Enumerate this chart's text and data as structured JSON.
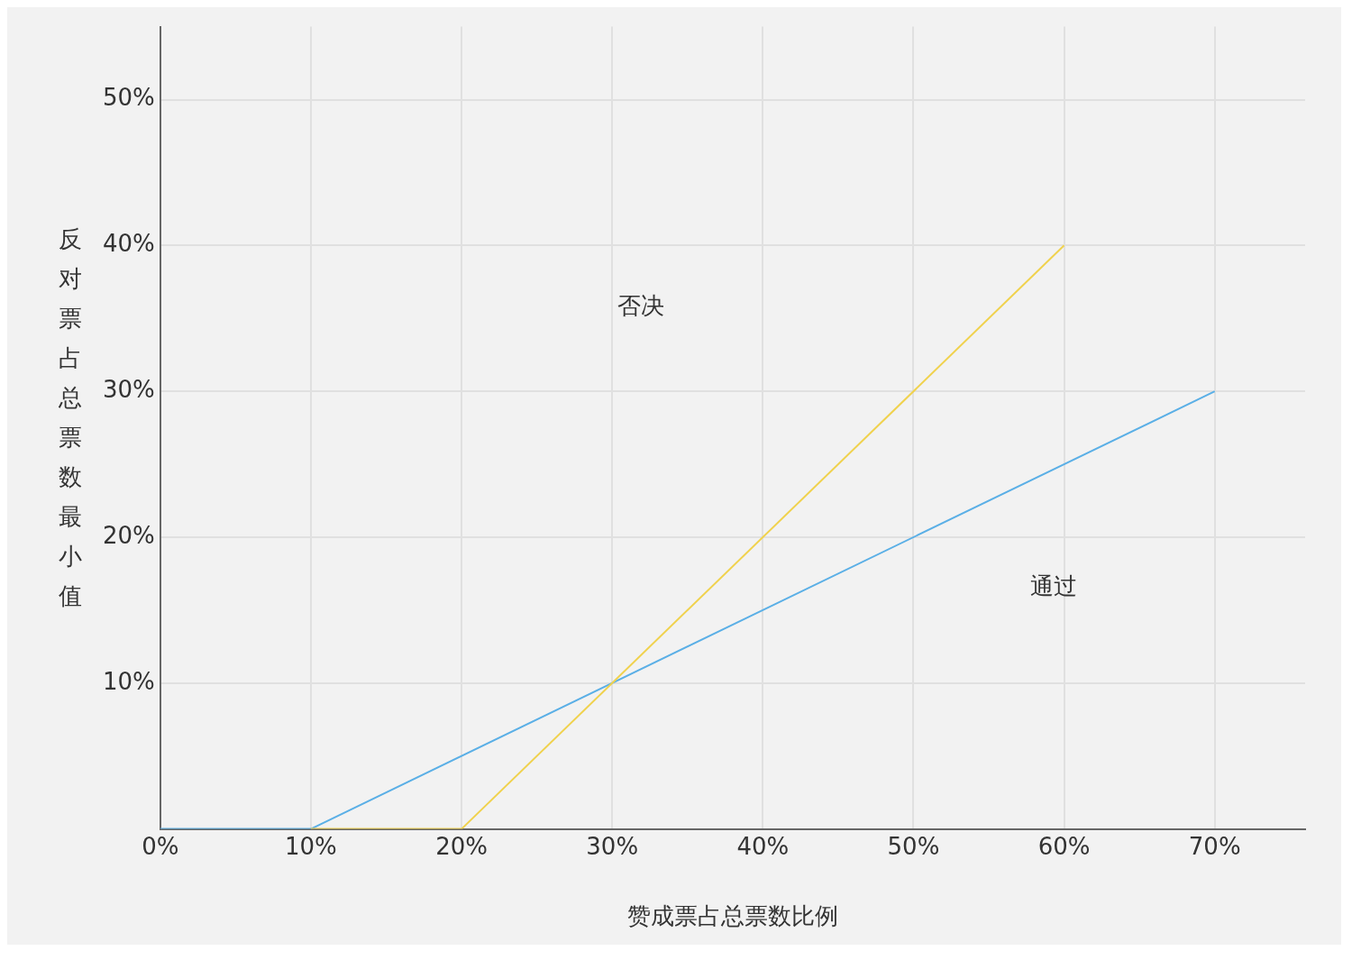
{
  "chart_data": {
    "type": "line",
    "xlabel": "赞成票占总票数比例",
    "ylabel": "反对票占总票数最小值",
    "series": [
      {
        "color": "#f0d24e",
        "x": [
          10,
          20,
          60
        ],
        "values": [
          0,
          0,
          40
        ]
      },
      {
        "color": "#5aafe6",
        "x": [
          0,
          10,
          70
        ],
        "values": [
          0,
          0,
          30
        ]
      }
    ],
    "xlim": [
      0,
      76
    ],
    "ylim": [
      0,
      55
    ],
    "xticks": [
      {
        "value": 0,
        "label": "0%"
      },
      {
        "value": 10,
        "label": "10%"
      },
      {
        "value": 20,
        "label": "20%"
      },
      {
        "value": 30,
        "label": "30%"
      },
      {
        "value": 40,
        "label": "40%"
      },
      {
        "value": 50,
        "label": "50%"
      },
      {
        "value": 60,
        "label": "60%"
      },
      {
        "value": 70,
        "label": "70%"
      }
    ],
    "yticks": [
      {
        "value": 0,
        "label": null
      },
      {
        "value": 10,
        "label": "10%"
      },
      {
        "value": 20,
        "label": "20%"
      },
      {
        "value": 30,
        "label": "30%"
      },
      {
        "value": 40,
        "label": "40%"
      },
      {
        "value": 50,
        "label": "50%"
      }
    ],
    "annotations": [
      "否决",
      "通过"
    ],
    "grid": true,
    "legend": false,
    "marker": "none",
    "line_style": "solid"
  }
}
